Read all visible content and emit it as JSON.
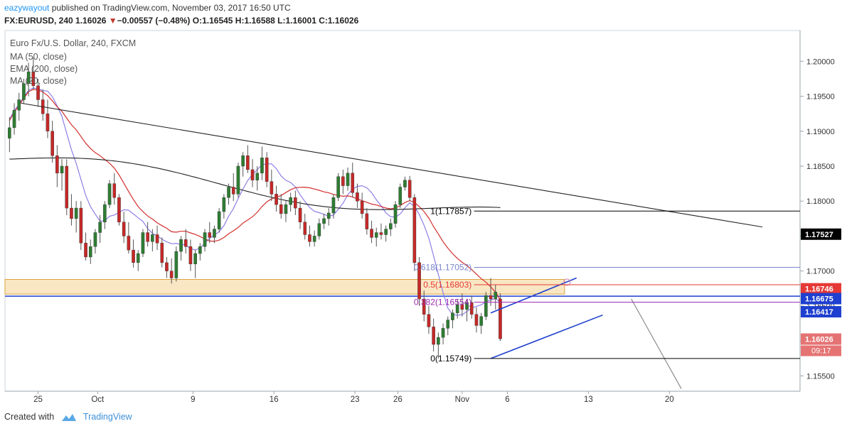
{
  "header": {
    "author": "eazywayout",
    "published_text": "published on TradingView.com, November 03, 2017 16:50 UTC",
    "symbol_line_prefix": "FX:EURUSD, 240",
    "last": "1.16026",
    "change_arrow": "▼",
    "change": "−0.00557 (−0.48%)",
    "ohlc": "O:1.16545 H:1.16588 L:1.16001 C:1.16026"
  },
  "legend": {
    "title": "Euro Fx/U.S. Dollar, 240, FXCM",
    "ma50": "MA (50, close)",
    "ema200": "EMA (200, close)",
    "ma20": "MA (20, close)"
  },
  "footer": {
    "created_with": "Created with",
    "brand": "TradingView"
  },
  "chart_data": {
    "type": "candlestick",
    "symbol": "FX:EURUSD",
    "interval": "240",
    "ylim": [
      1.1528,
      1.2044
    ],
    "y_ticks": [
      "1.20000",
      "1.19500",
      "1.19000",
      "1.18500",
      "1.18000",
      "1.17500",
      "1.17000",
      "1.16500",
      "1.16000",
      "1.15500"
    ],
    "x_ticks": [
      {
        "label": "25",
        "t": 6.5
      },
      {
        "label": "Oct",
        "t": 19
      },
      {
        "label": "9",
        "t": 39
      },
      {
        "label": "16",
        "t": 56
      },
      {
        "label": "23",
        "t": 73
      },
      {
        "label": "26",
        "t": 82
      },
      {
        "label": "Nov",
        "t": 95.5
      },
      {
        "label": "6",
        "t": 105
      },
      {
        "label": "13",
        "t": 122
      },
      {
        "label": "20",
        "t": 139
      }
    ],
    "price_labels": [
      {
        "value": "1.17527",
        "price": 1.17527,
        "bg": "#000000"
      },
      {
        "value": "1.16746",
        "price": 1.16746,
        "bg": "#e53935"
      },
      {
        "value": "1.16675",
        "price": 1.16605,
        "bg": "#1e3fcf"
      },
      {
        "value": "1.16417",
        "price": 1.16417,
        "bg": "#1e3fcf"
      },
      {
        "value": "1.16026",
        "price": 1.16026,
        "bg": "#e57373"
      }
    ],
    "countdown": "09:17",
    "fib_levels": [
      {
        "label": "1(1.17857)",
        "price": 1.17857,
        "color": "#000000"
      },
      {
        "label": "0.618(1.17052)",
        "price": 1.17052,
        "color": "#7986cb"
      },
      {
        "label": "0.5(1.16803)",
        "price": 1.16803,
        "color": "#e53935"
      },
      {
        "label": "0.382(1.16554)",
        "price": 1.16554,
        "color": "#9c27b0"
      },
      {
        "label": "0(1.15749)",
        "price": 1.15749,
        "color": "#000000"
      }
    ],
    "zone": {
      "top": 1.1688,
      "bottom": 1.1667,
      "t_end": 117
    },
    "horizontal_line": {
      "price": 1.1664,
      "color": "#1e3fcf"
    },
    "candles": [
      [
        1.189,
        1.192,
        1.187,
        1.1905
      ],
      [
        1.1905,
        1.194,
        1.1895,
        1.193
      ],
      [
        1.193,
        1.1955,
        1.1915,
        1.1945
      ],
      [
        1.1945,
        1.1975,
        1.194,
        1.1968
      ],
      [
        1.1968,
        1.1998,
        1.195,
        1.1985
      ],
      [
        1.1985,
        1.2005,
        1.196,
        1.1965
      ],
      [
        1.1965,
        1.1975,
        1.1935,
        1.1945
      ],
      [
        1.1945,
        1.196,
        1.1915,
        1.1925
      ],
      [
        1.1925,
        1.1945,
        1.189,
        1.19
      ],
      [
        1.19,
        1.1915,
        1.1855,
        1.1865
      ],
      [
        1.1865,
        1.188,
        1.182,
        1.184
      ],
      [
        1.184,
        1.186,
        1.1815,
        1.185
      ],
      [
        1.185,
        1.186,
        1.178,
        1.179
      ],
      [
        1.179,
        1.181,
        1.1765,
        1.1775
      ],
      [
        1.1775,
        1.18,
        1.1755,
        1.179
      ],
      [
        1.179,
        1.18,
        1.173,
        1.174
      ],
      [
        1.174,
        1.1755,
        1.1715,
        1.172
      ],
      [
        1.172,
        1.1745,
        1.171,
        1.1735
      ],
      [
        1.1735,
        1.176,
        1.1725,
        1.1755
      ],
      [
        1.1755,
        1.178,
        1.174,
        1.177
      ],
      [
        1.177,
        1.18,
        1.176,
        1.1795
      ],
      [
        1.1795,
        1.183,
        1.179,
        1.1825
      ],
      [
        1.1825,
        1.184,
        1.1795,
        1.1805
      ],
      [
        1.1805,
        1.181,
        1.1765,
        1.177
      ],
      [
        1.177,
        1.1785,
        1.174,
        1.175
      ],
      [
        1.175,
        1.177,
        1.1725,
        1.173
      ],
      [
        1.173,
        1.1745,
        1.1705,
        1.1712
      ],
      [
        1.1712,
        1.173,
        1.17,
        1.1725
      ],
      [
        1.1725,
        1.176,
        1.172,
        1.1755
      ],
      [
        1.1755,
        1.177,
        1.1735,
        1.1742
      ],
      [
        1.1742,
        1.176,
        1.1728,
        1.1752
      ],
      [
        1.1752,
        1.1765,
        1.173,
        1.174
      ],
      [
        1.174,
        1.1748,
        1.1705,
        1.1712
      ],
      [
        1.1712,
        1.172,
        1.169,
        1.17
      ],
      [
        1.17,
        1.1718,
        1.1682,
        1.169
      ],
      [
        1.169,
        1.1735,
        1.1685,
        1.1728
      ],
      [
        1.1728,
        1.175,
        1.1715,
        1.1745
      ],
      [
        1.1745,
        1.176,
        1.1725,
        1.1735
      ],
      [
        1.1735,
        1.1745,
        1.17,
        1.171
      ],
      [
        1.171,
        1.173,
        1.169,
        1.1725
      ],
      [
        1.1725,
        1.174,
        1.1715,
        1.1735
      ],
      [
        1.1735,
        1.176,
        1.1728,
        1.1755
      ],
      [
        1.1755,
        1.177,
        1.174,
        1.1748
      ],
      [
        1.1748,
        1.1765,
        1.174,
        1.176
      ],
      [
        1.176,
        1.179,
        1.1755,
        1.1785
      ],
      [
        1.1785,
        1.181,
        1.1775,
        1.1805
      ],
      [
        1.1805,
        1.1825,
        1.1795,
        1.182
      ],
      [
        1.182,
        1.184,
        1.18,
        1.181
      ],
      [
        1.181,
        1.1855,
        1.1805,
        1.185
      ],
      [
        1.185,
        1.187,
        1.1835,
        1.1865
      ],
      [
        1.1865,
        1.188,
        1.184,
        1.1845
      ],
      [
        1.1845,
        1.186,
        1.182,
        1.183
      ],
      [
        1.183,
        1.185,
        1.1815,
        1.184
      ],
      [
        1.184,
        1.1878,
        1.183,
        1.1862
      ],
      [
        1.1862,
        1.187,
        1.182,
        1.1828
      ],
      [
        1.1828,
        1.1845,
        1.18,
        1.181
      ],
      [
        1.181,
        1.1822,
        1.1785,
        1.1795
      ],
      [
        1.1795,
        1.181,
        1.1775,
        1.1782
      ],
      [
        1.1782,
        1.18,
        1.177,
        1.1795
      ],
      [
        1.1795,
        1.1812,
        1.1785,
        1.1805
      ],
      [
        1.1805,
        1.1815,
        1.178,
        1.179
      ],
      [
        1.179,
        1.18,
        1.176,
        1.177
      ],
      [
        1.177,
        1.1782,
        1.1745,
        1.1752
      ],
      [
        1.1752,
        1.1765,
        1.1735,
        1.1742
      ],
      [
        1.1742,
        1.1758,
        1.1735,
        1.175
      ],
      [
        1.175,
        1.1775,
        1.1745,
        1.1768
      ],
      [
        1.1768,
        1.1782,
        1.176,
        1.1775
      ],
      [
        1.1775,
        1.179,
        1.1765,
        1.1783
      ],
      [
        1.1783,
        1.181,
        1.1775,
        1.1805
      ],
      [
        1.1805,
        1.184,
        1.18,
        1.1835
      ],
      [
        1.1835,
        1.1845,
        1.181,
        1.1822
      ],
      [
        1.1822,
        1.1848,
        1.1815,
        1.184
      ],
      [
        1.184,
        1.1855,
        1.1805,
        1.1812
      ],
      [
        1.1812,
        1.1825,
        1.179,
        1.18
      ],
      [
        1.18,
        1.1812,
        1.1775,
        1.1782
      ],
      [
        1.1782,
        1.179,
        1.1752,
        1.176
      ],
      [
        1.176,
        1.1772,
        1.174,
        1.1748
      ],
      [
        1.1748,
        1.1762,
        1.1735,
        1.1755
      ],
      [
        1.1755,
        1.1768,
        1.1745,
        1.1752
      ],
      [
        1.1752,
        1.1765,
        1.1742,
        1.176
      ],
      [
        1.176,
        1.1775,
        1.175,
        1.1768
      ],
      [
        1.1768,
        1.18,
        1.1762,
        1.1795
      ],
      [
        1.1795,
        1.1825,
        1.179,
        1.182
      ],
      [
        1.182,
        1.1835,
        1.1815,
        1.183
      ],
      [
        1.183,
        1.1836,
        1.18,
        1.1805
      ],
      [
        1.1805,
        1.181,
        1.17,
        1.1712
      ],
      [
        1.1712,
        1.172,
        1.165,
        1.166
      ],
      [
        1.166,
        1.1672,
        1.1628,
        1.1638
      ],
      [
        1.1638,
        1.165,
        1.161,
        1.162
      ],
      [
        1.162,
        1.1632,
        1.1585,
        1.1595
      ],
      [
        1.1595,
        1.1612,
        1.1575,
        1.1605
      ],
      [
        1.1605,
        1.1625,
        1.1595,
        1.1618
      ],
      [
        1.1618,
        1.1635,
        1.1608,
        1.163
      ],
      [
        1.163,
        1.1645,
        1.1618,
        1.164
      ],
      [
        1.164,
        1.166,
        1.1632,
        1.1652
      ],
      [
        1.1652,
        1.1668,
        1.1635,
        1.1645
      ],
      [
        1.1645,
        1.166,
        1.1628,
        1.1655
      ],
      [
        1.1655,
        1.1665,
        1.1632,
        1.1638
      ],
      [
        1.1638,
        1.1648,
        1.1612,
        1.1622
      ],
      [
        1.1622,
        1.164,
        1.161,
        1.1635
      ],
      [
        1.1635,
        1.167,
        1.163,
        1.1665
      ],
      [
        1.1665,
        1.169,
        1.165,
        1.166
      ],
      [
        1.166,
        1.168,
        1.1645,
        1.167
      ],
      [
        1.166,
        1.1668,
        1.16,
        1.1603
      ]
    ]
  }
}
